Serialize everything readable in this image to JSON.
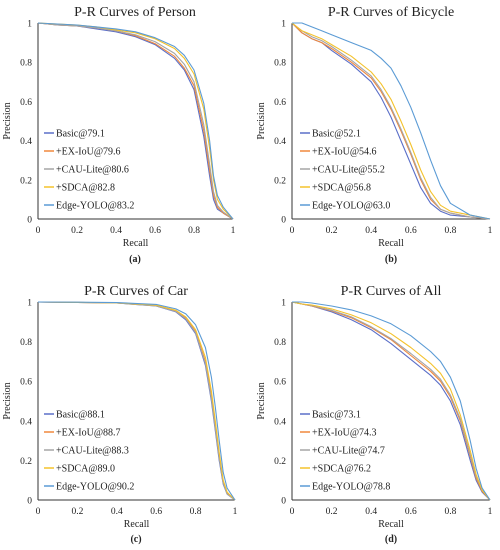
{
  "figure": {
    "colors": {
      "Basic": "#5b6fc8",
      "EX-IoU": "#f0883c",
      "CAU-Lite": "#a5a5a5",
      "SDCA": "#f4c22c",
      "Edge-YOLO": "#5b9bd5"
    }
  },
  "chart_data": [
    {
      "type": "line",
      "title": "P-R Curves of Person",
      "caption": "(a)",
      "xlabel": "Recall",
      "ylabel": "Precision",
      "xlim": [
        0,
        1
      ],
      "ylim": [
        0,
        1
      ],
      "xticks": [
        "0",
        "0.2",
        "0.4",
        "0.6",
        "0.8",
        "1"
      ],
      "yticks": [
        "0",
        "0.2",
        "0.4",
        "0.6",
        "0.8",
        "1"
      ],
      "grid": false,
      "legend_position": "bottom-left",
      "series": [
        {
          "name": "Basic@79.1",
          "key": "Basic",
          "x": [
            0,
            0.1,
            0.2,
            0.3,
            0.4,
            0.5,
            0.6,
            0.7,
            0.75,
            0.8,
            0.85,
            0.88,
            0.9,
            0.92,
            0.95,
            1.0
          ],
          "y": [
            1.0,
            0.99,
            0.985,
            0.97,
            0.955,
            0.93,
            0.89,
            0.82,
            0.76,
            0.66,
            0.42,
            0.22,
            0.1,
            0.05,
            0.03,
            0.0
          ]
        },
        {
          "name": "+EX-IoU@79.6",
          "key": "EX-IoU",
          "x": [
            0,
            0.1,
            0.2,
            0.3,
            0.4,
            0.5,
            0.6,
            0.7,
            0.75,
            0.8,
            0.85,
            0.88,
            0.9,
            0.92,
            0.95,
            1.0
          ],
          "y": [
            1.0,
            0.99,
            0.985,
            0.975,
            0.96,
            0.935,
            0.895,
            0.83,
            0.77,
            0.68,
            0.45,
            0.25,
            0.12,
            0.06,
            0.03,
            0.0
          ]
        },
        {
          "name": "+CAU-Lite@80.6",
          "key": "CAU-Lite",
          "x": [
            0,
            0.1,
            0.2,
            0.3,
            0.4,
            0.5,
            0.6,
            0.7,
            0.75,
            0.8,
            0.85,
            0.88,
            0.9,
            0.92,
            0.95,
            1.0
          ],
          "y": [
            1.0,
            0.99,
            0.985,
            0.975,
            0.96,
            0.94,
            0.905,
            0.845,
            0.79,
            0.7,
            0.48,
            0.28,
            0.14,
            0.07,
            0.035,
            0.0
          ]
        },
        {
          "name": "+SDCA@82.8",
          "key": "SDCA",
          "x": [
            0,
            0.1,
            0.2,
            0.3,
            0.4,
            0.5,
            0.6,
            0.7,
            0.75,
            0.8,
            0.85,
            0.88,
            0.9,
            0.92,
            0.95,
            1.0
          ],
          "y": [
            1.0,
            0.995,
            0.99,
            0.98,
            0.965,
            0.95,
            0.92,
            0.87,
            0.82,
            0.74,
            0.56,
            0.36,
            0.2,
            0.1,
            0.05,
            0.0
          ]
        },
        {
          "name": "Edge-YOLO@83.2",
          "key": "Edge-YOLO",
          "x": [
            0,
            0.1,
            0.2,
            0.3,
            0.4,
            0.5,
            0.6,
            0.7,
            0.75,
            0.8,
            0.85,
            0.88,
            0.9,
            0.92,
            0.95,
            1.0
          ],
          "y": [
            1.0,
            0.995,
            0.99,
            0.98,
            0.97,
            0.955,
            0.925,
            0.88,
            0.835,
            0.76,
            0.59,
            0.4,
            0.22,
            0.12,
            0.06,
            0.0
          ]
        }
      ]
    },
    {
      "type": "line",
      "title": "P-R Curves of Bicycle",
      "caption": "(b)",
      "xlabel": "Recall",
      "ylabel": "Precision",
      "xlim": [
        0,
        1
      ],
      "ylim": [
        0,
        1
      ],
      "xticks": [
        "0",
        "0.2",
        "0.4",
        "0.6",
        "0.8",
        "1"
      ],
      "yticks": [
        "0",
        "0.2",
        "0.4",
        "0.6",
        "0.8",
        "1"
      ],
      "grid": false,
      "legend_position": "bottom-left",
      "series": [
        {
          "name": "Basic@52.1",
          "key": "Basic",
          "x": [
            0,
            0.05,
            0.1,
            0.15,
            0.2,
            0.3,
            0.4,
            0.45,
            0.5,
            0.55,
            0.6,
            0.65,
            0.7,
            0.75,
            0.8,
            0.9,
            1.0
          ],
          "y": [
            1.0,
            0.95,
            0.92,
            0.9,
            0.86,
            0.79,
            0.7,
            0.62,
            0.52,
            0.4,
            0.28,
            0.16,
            0.08,
            0.04,
            0.02,
            0.01,
            0.0
          ]
        },
        {
          "name": "+EX-IoU@54.6",
          "key": "EX-IoU",
          "x": [
            0,
            0.05,
            0.1,
            0.15,
            0.2,
            0.3,
            0.4,
            0.45,
            0.5,
            0.55,
            0.6,
            0.65,
            0.7,
            0.75,
            0.8,
            0.9,
            1.0
          ],
          "y": [
            1.0,
            0.95,
            0.92,
            0.9,
            0.87,
            0.8,
            0.72,
            0.65,
            0.56,
            0.45,
            0.33,
            0.2,
            0.1,
            0.05,
            0.03,
            0.01,
            0.0
          ]
        },
        {
          "name": "+CAU-Lite@55.2",
          "key": "CAU-Lite",
          "x": [
            0,
            0.05,
            0.1,
            0.15,
            0.2,
            0.3,
            0.4,
            0.45,
            0.5,
            0.55,
            0.6,
            0.65,
            0.7,
            0.75,
            0.8,
            0.9,
            1.0
          ],
          "y": [
            1.0,
            0.96,
            0.93,
            0.91,
            0.88,
            0.81,
            0.73,
            0.66,
            0.57,
            0.46,
            0.34,
            0.21,
            0.11,
            0.05,
            0.03,
            0.01,
            0.0
          ]
        },
        {
          "name": "+SDCA@56.8",
          "key": "SDCA",
          "x": [
            0,
            0.05,
            0.1,
            0.15,
            0.2,
            0.3,
            0.4,
            0.45,
            0.5,
            0.55,
            0.6,
            0.65,
            0.7,
            0.75,
            0.8,
            0.9,
            1.0
          ],
          "y": [
            1.0,
            0.96,
            0.94,
            0.92,
            0.89,
            0.83,
            0.75,
            0.69,
            0.61,
            0.5,
            0.38,
            0.25,
            0.14,
            0.07,
            0.04,
            0.02,
            0.0
          ]
        },
        {
          "name": "Edge-YOLO@63.0",
          "key": "Edge-YOLO",
          "x": [
            0,
            0.05,
            0.1,
            0.15,
            0.2,
            0.3,
            0.4,
            0.45,
            0.5,
            0.55,
            0.6,
            0.65,
            0.7,
            0.75,
            0.8,
            0.9,
            1.0
          ],
          "y": [
            1.0,
            1.0,
            0.98,
            0.96,
            0.94,
            0.9,
            0.86,
            0.82,
            0.77,
            0.68,
            0.57,
            0.44,
            0.3,
            0.17,
            0.08,
            0.02,
            0.0
          ]
        }
      ]
    },
    {
      "type": "line",
      "title": "P-R Curves of Car",
      "caption": "(c)",
      "xlabel": "Recall",
      "ylabel": "Precision",
      "xlim": [
        0,
        1
      ],
      "ylim": [
        0,
        1
      ],
      "xticks": [
        "0",
        "0.2",
        "0.4",
        "0.6",
        "0.8",
        "1"
      ],
      "yticks": [
        "0",
        "0.2",
        "0.4",
        "0.6",
        "0.8",
        "1"
      ],
      "grid": false,
      "legend_position": "bottom-left",
      "series": [
        {
          "name": "Basic@88.1",
          "key": "Basic",
          "x": [
            0,
            0.2,
            0.4,
            0.6,
            0.7,
            0.75,
            0.8,
            0.85,
            0.88,
            0.9,
            0.92,
            0.94,
            0.96,
            1.0
          ],
          "y": [
            1.0,
            0.998,
            0.995,
            0.98,
            0.95,
            0.91,
            0.84,
            0.68,
            0.5,
            0.35,
            0.2,
            0.08,
            0.03,
            0.0
          ]
        },
        {
          "name": "+EX-IoU@88.7",
          "key": "EX-IoU",
          "x": [
            0,
            0.2,
            0.4,
            0.6,
            0.7,
            0.75,
            0.8,
            0.85,
            0.88,
            0.9,
            0.92,
            0.94,
            0.96,
            1.0
          ],
          "y": [
            1.0,
            0.998,
            0.995,
            0.982,
            0.955,
            0.92,
            0.85,
            0.7,
            0.53,
            0.38,
            0.22,
            0.09,
            0.035,
            0.0
          ]
        },
        {
          "name": "+CAU-Lite@88.3",
          "key": "CAU-Lite",
          "x": [
            0,
            0.2,
            0.4,
            0.6,
            0.7,
            0.75,
            0.8,
            0.85,
            0.88,
            0.9,
            0.92,
            0.94,
            0.96,
            1.0
          ],
          "y": [
            1.0,
            0.998,
            0.995,
            0.98,
            0.952,
            0.915,
            0.845,
            0.69,
            0.51,
            0.36,
            0.21,
            0.085,
            0.03,
            0.0
          ]
        },
        {
          "name": "+SDCA@89.0",
          "key": "SDCA",
          "x": [
            0,
            0.2,
            0.4,
            0.6,
            0.7,
            0.75,
            0.8,
            0.85,
            0.88,
            0.9,
            0.92,
            0.94,
            0.96,
            1.0
          ],
          "y": [
            1.0,
            0.998,
            0.996,
            0.984,
            0.958,
            0.925,
            0.86,
            0.72,
            0.55,
            0.4,
            0.24,
            0.1,
            0.04,
            0.0
          ]
        },
        {
          "name": "Edge-YOLO@90.2",
          "key": "Edge-YOLO",
          "x": [
            0,
            0.2,
            0.4,
            0.6,
            0.7,
            0.75,
            0.8,
            0.85,
            0.88,
            0.9,
            0.92,
            0.94,
            0.96,
            1.0
          ],
          "y": [
            1.0,
            0.999,
            0.997,
            0.988,
            0.965,
            0.94,
            0.885,
            0.77,
            0.62,
            0.47,
            0.3,
            0.14,
            0.06,
            0.0
          ]
        }
      ]
    },
    {
      "type": "line",
      "title": "P-R Curves of All",
      "caption": "(d)",
      "xlabel": "Recall",
      "ylabel": "Precision",
      "xlim": [
        0,
        1
      ],
      "ylim": [
        0,
        1
      ],
      "xticks": [
        "0",
        "0.2",
        "0.4",
        "0.6",
        "0.8",
        "1"
      ],
      "yticks": [
        "0",
        "0.2",
        "0.4",
        "0.6",
        "0.8",
        "1"
      ],
      "grid": false,
      "legend_position": "bottom-left",
      "series": [
        {
          "name": "Basic@73.1",
          "key": "Basic",
          "x": [
            0,
            0.05,
            0.1,
            0.2,
            0.3,
            0.4,
            0.5,
            0.6,
            0.7,
            0.75,
            0.8,
            0.85,
            0.9,
            0.93,
            0.96,
            1.0
          ],
          "y": [
            1.0,
            0.99,
            0.98,
            0.95,
            0.91,
            0.86,
            0.79,
            0.71,
            0.63,
            0.58,
            0.5,
            0.38,
            0.2,
            0.1,
            0.04,
            0.0
          ]
        },
        {
          "name": "+EX-IoU@74.3",
          "key": "EX-IoU",
          "x": [
            0,
            0.05,
            0.1,
            0.2,
            0.3,
            0.4,
            0.5,
            0.6,
            0.7,
            0.75,
            0.8,
            0.85,
            0.9,
            0.93,
            0.96,
            1.0
          ],
          "y": [
            1.0,
            0.99,
            0.98,
            0.955,
            0.92,
            0.87,
            0.81,
            0.73,
            0.65,
            0.6,
            0.52,
            0.4,
            0.22,
            0.11,
            0.045,
            0.0
          ]
        },
        {
          "name": "+CAU-Lite@74.7",
          "key": "CAU-Lite",
          "x": [
            0,
            0.05,
            0.1,
            0.2,
            0.3,
            0.4,
            0.5,
            0.6,
            0.7,
            0.75,
            0.8,
            0.85,
            0.9,
            0.93,
            0.96,
            1.0
          ],
          "y": [
            1.0,
            0.99,
            0.982,
            0.958,
            0.925,
            0.875,
            0.815,
            0.74,
            0.66,
            0.61,
            0.53,
            0.41,
            0.23,
            0.12,
            0.05,
            0.0
          ]
        },
        {
          "name": "+SDCA@76.2",
          "key": "SDCA",
          "x": [
            0,
            0.05,
            0.1,
            0.2,
            0.3,
            0.4,
            0.5,
            0.6,
            0.7,
            0.75,
            0.8,
            0.85,
            0.9,
            0.93,
            0.96,
            1.0
          ],
          "y": [
            1.0,
            0.99,
            0.985,
            0.965,
            0.935,
            0.895,
            0.84,
            0.77,
            0.69,
            0.64,
            0.56,
            0.43,
            0.25,
            0.13,
            0.05,
            0.0
          ]
        },
        {
          "name": "Edge-YOLO@78.8",
          "key": "Edge-YOLO",
          "x": [
            0,
            0.05,
            0.1,
            0.2,
            0.3,
            0.4,
            0.5,
            0.6,
            0.7,
            0.75,
            0.8,
            0.85,
            0.9,
            0.93,
            0.96,
            1.0
          ],
          "y": [
            1.0,
            1.0,
            0.995,
            0.98,
            0.96,
            0.93,
            0.89,
            0.83,
            0.75,
            0.7,
            0.62,
            0.5,
            0.3,
            0.16,
            0.06,
            0.0
          ]
        }
      ]
    }
  ]
}
